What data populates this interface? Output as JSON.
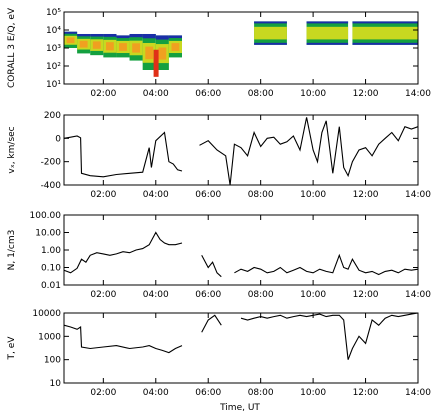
{
  "chart_data": [
    {
      "type": "heatmap",
      "ylabel": "CORALL 3 E/Q, eV",
      "y_scale": "log",
      "ylim": [
        10,
        100000
      ],
      "yticks": [
        "10¹",
        "10²",
        "10³",
        "10⁴",
        "10⁵"
      ],
      "xlim": [
        "00:30",
        "14:00"
      ],
      "xticks": [
        "02:00",
        "04:00",
        "06:00",
        "08:00",
        "10:00",
        "12:00",
        "14:00"
      ],
      "colors": [
        "#1a2ea8",
        "#14a040",
        "#c8d820",
        "#f0a020",
        "#e03018"
      ],
      "data_segments": [
        [
          "00:30",
          "05:00"
        ],
        [
          "07:45",
          "09:00"
        ],
        [
          "09:45",
          "11:20"
        ],
        [
          "11:30",
          "14:00"
        ]
      ],
      "band_y": [
        [
          "00:30",
          1500,
          8000
        ],
        [
          "01:00",
          1000,
          6000
        ],
        [
          "01:30",
          500,
          6000
        ],
        [
          "02:00",
          400,
          6000
        ],
        [
          "02:30",
          300,
          5000
        ],
        [
          "03:00",
          300,
          5000
        ],
        [
          "03:30",
          200,
          6000
        ],
        [
          "04:00",
          60,
          5000
        ],
        [
          "04:30",
          300,
          5000
        ],
        [
          "05:00",
          300,
          5000
        ]
      ]
    },
    {
      "type": "line",
      "ylabel": "vₓ, km/sec",
      "y_scale": "linear",
      "ylim": [
        -400,
        200
      ],
      "yticks": [
        "-400",
        "-200",
        "0",
        "200"
      ],
      "xlim": [
        "00:30",
        "14:00"
      ],
      "xticks": [
        "02:00",
        "04:00",
        "06:00",
        "08:00",
        "10:00",
        "12:00",
        "14:00"
      ],
      "x": [
        "00:30",
        "00:45",
        "01:00",
        "01:08",
        "01:10",
        "01:30",
        "02:00",
        "02:30",
        "03:00",
        "03:30",
        "03:45",
        "03:50",
        "04:00",
        "04:20",
        "04:30",
        "04:40",
        "04:50",
        "05:00",
        null,
        "05:40",
        "06:00",
        "06:20",
        "06:40",
        "06:50",
        "07:00",
        "07:15",
        "07:30",
        "07:45",
        "08:00",
        "08:15",
        "08:30",
        "08:45",
        "09:00",
        "09:15",
        "09:30",
        "09:45",
        "10:00",
        "10:10",
        "10:20",
        "10:30",
        "10:45",
        "11:00",
        "11:10",
        "11:20",
        "11:30",
        "11:45",
        "12:00",
        "12:15",
        "12:30",
        "12:45",
        "13:00",
        "13:15",
        "13:30",
        "13:45",
        "14:00"
      ],
      "y": [
        0,
        10,
        20,
        5,
        -300,
        -320,
        -330,
        -310,
        -300,
        -290,
        -80,
        -250,
        -20,
        50,
        -200,
        -220,
        -270,
        -280,
        null,
        -60,
        -20,
        -100,
        -150,
        -420,
        -50,
        -80,
        -150,
        50,
        -70,
        0,
        10,
        -50,
        -30,
        20,
        -100,
        180,
        -100,
        -200,
        50,
        150,
        -300,
        100,
        -250,
        -320,
        -200,
        -100,
        -80,
        -150,
        -50,
        0,
        50,
        -20,
        100,
        80,
        100
      ]
    },
    {
      "type": "line",
      "ylabel": "N, 1/cm3",
      "y_scale": "log",
      "ylim": [
        0.01,
        100
      ],
      "yticks": [
        "0.01",
        "0.10",
        "1.00",
        "10.00",
        "100.00"
      ],
      "xlim": [
        "00:30",
        "14:00"
      ],
      "xticks": [
        "02:00",
        "04:00",
        "06:00",
        "08:00",
        "10:00",
        "12:00",
        "14:00"
      ],
      "x": [
        "00:30",
        "00:45",
        "01:00",
        "01:10",
        "01:20",
        "01:30",
        "01:45",
        "02:00",
        "02:15",
        "02:30",
        "02:45",
        "03:00",
        "03:15",
        "03:30",
        "03:45",
        "04:00",
        "04:10",
        "04:20",
        "04:30",
        "04:45",
        "05:00",
        null,
        "05:45",
        "06:00",
        "06:10",
        "06:20",
        "06:30",
        null,
        "07:00",
        "07:15",
        "07:30",
        "07:45",
        "08:00",
        "08:15",
        "08:30",
        "08:45",
        "09:00",
        "09:15",
        "09:30",
        "09:45",
        "10:00",
        "10:15",
        "10:30",
        "10:45",
        "11:00",
        "11:10",
        "11:20",
        "11:30",
        "11:45",
        "12:00",
        "12:15",
        "12:30",
        "12:45",
        "13:00",
        "13:15",
        "13:30",
        "13:45",
        "14:00"
      ],
      "y": [
        0.07,
        0.05,
        0.09,
        0.3,
        0.2,
        0.5,
        0.7,
        0.6,
        0.5,
        0.6,
        0.8,
        0.7,
        1.0,
        1.2,
        2.0,
        10.0,
        4.0,
        2.5,
        2.0,
        2.0,
        2.5,
        null,
        0.5,
        0.1,
        0.2,
        0.05,
        0.03,
        null,
        0.05,
        0.08,
        0.06,
        0.1,
        0.08,
        0.05,
        0.06,
        0.1,
        0.05,
        0.07,
        0.1,
        0.06,
        0.05,
        0.08,
        0.06,
        0.05,
        0.5,
        0.1,
        0.08,
        0.3,
        0.07,
        0.05,
        0.06,
        0.04,
        0.06,
        0.07,
        0.05,
        0.08,
        0.07,
        0.08
      ]
    },
    {
      "type": "line",
      "ylabel": "T, eV",
      "y_scale": "log",
      "ylim": [
        10,
        10000
      ],
      "yticks": [
        "10",
        "100",
        "1000",
        "10000"
      ],
      "xlim": [
        "00:30",
        "14:00"
      ],
      "xticks": [
        "02:00",
        "04:00",
        "06:00",
        "08:00",
        "10:00",
        "12:00",
        "14:00"
      ],
      "x": [
        "00:30",
        "00:45",
        "01:00",
        "01:08",
        "01:10",
        "01:30",
        "02:00",
        "02:30",
        "03:00",
        "03:30",
        "03:45",
        "04:00",
        "04:15",
        "04:30",
        "04:45",
        "05:00",
        null,
        "05:45",
        "06:00",
        "06:15",
        "06:30",
        null,
        "07:15",
        "07:30",
        "07:45",
        "08:00",
        "08:15",
        "08:30",
        "08:45",
        "09:00",
        "09:15",
        "09:30",
        "09:45",
        "10:00",
        "10:15",
        "10:30",
        "10:45",
        "11:00",
        "11:10",
        "11:20",
        "11:30",
        "11:45",
        "12:00",
        "12:15",
        "12:30",
        "12:45",
        "13:00",
        "13:15",
        "13:30",
        "13:45",
        "14:00"
      ],
      "y": [
        3000,
        2500,
        2000,
        2500,
        350,
        300,
        350,
        400,
        300,
        350,
        400,
        300,
        250,
        200,
        300,
        400,
        null,
        1500,
        5000,
        8000,
        3000,
        null,
        6000,
        5000,
        6000,
        7000,
        6000,
        7000,
        8000,
        6000,
        7000,
        8000,
        7000,
        8000,
        9000,
        7000,
        8000,
        8000,
        5000,
        100,
        300,
        1000,
        500,
        5000,
        3000,
        6000,
        8000,
        7000,
        8000,
        9000,
        10000
      ]
    }
  ],
  "x_axis_title": "Time, UT"
}
